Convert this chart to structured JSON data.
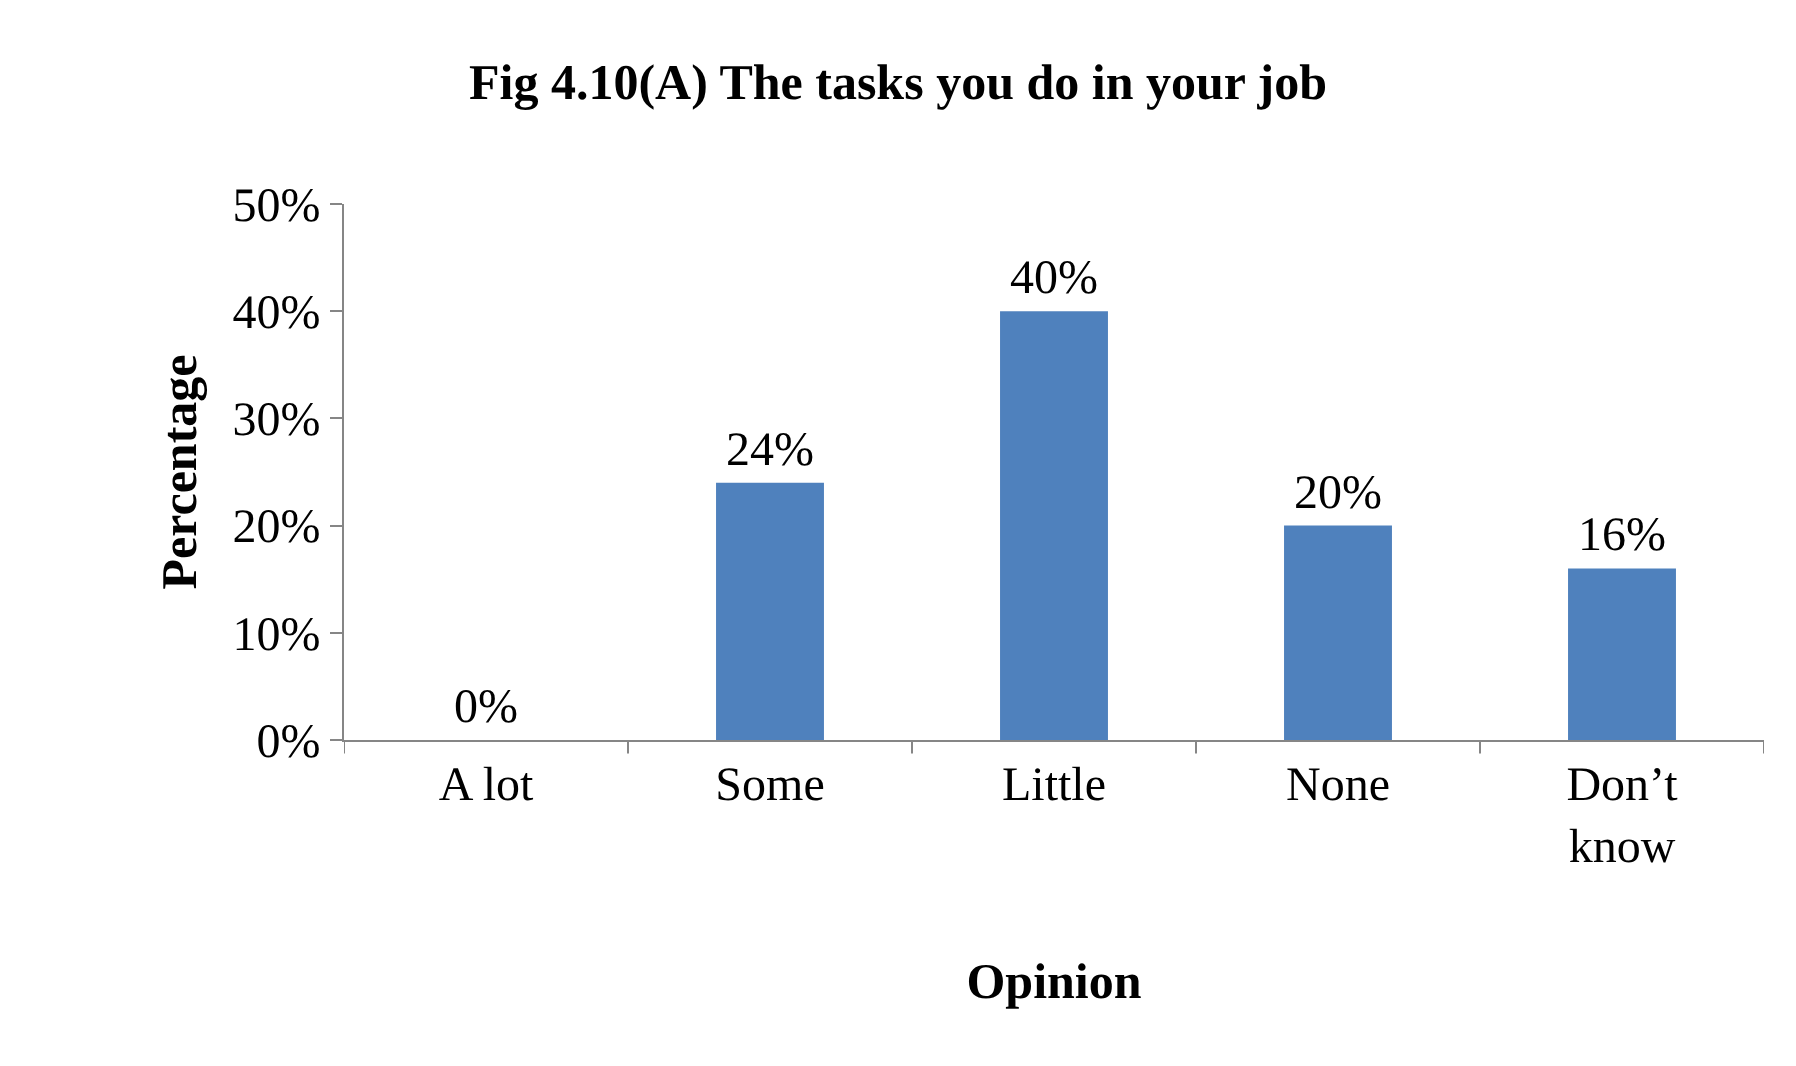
{
  "chart_data": {
    "type": "bar",
    "title": "Fig 4.10(A) The tasks you do in your job",
    "xlabel": "Opinion",
    "ylabel": "Percentage",
    "categories": [
      "A lot",
      "Some",
      "Little",
      "None",
      "Don’t know"
    ],
    "values": [
      0,
      24,
      40,
      20,
      16
    ],
    "value_labels": [
      "0%",
      "24%",
      "40%",
      "20%",
      "16%"
    ],
    "color": "#4f81bd",
    "ylim": [
      0,
      50
    ],
    "yticks": [
      {
        "value": 0,
        "label": "0%"
      },
      {
        "value": 10,
        "label": "10%"
      },
      {
        "value": 20,
        "label": "20%"
      },
      {
        "value": 30,
        "label": "30%"
      },
      {
        "value": 40,
        "label": "40%"
      },
      {
        "value": 50,
        "label": "50%"
      }
    ],
    "grid": false
  }
}
